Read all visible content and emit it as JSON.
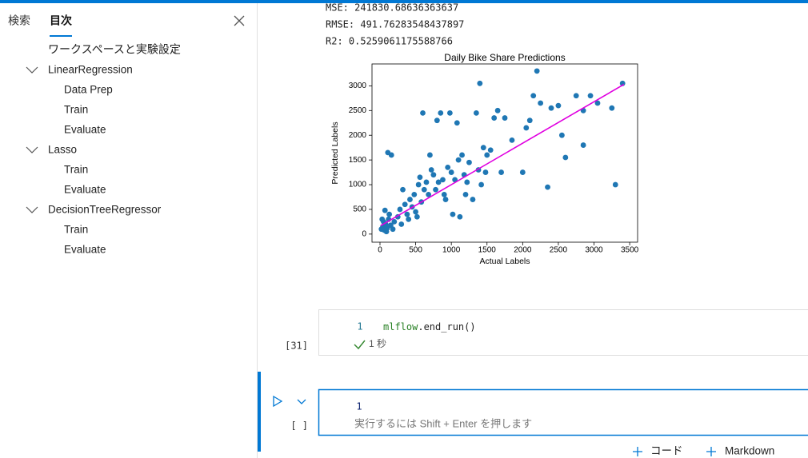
{
  "sidebar": {
    "tabs": [
      "検索",
      "目次"
    ],
    "toc": {
      "root": "ワークスペースと実験設定",
      "groups": [
        {
          "label": "LinearRegression",
          "children": [
            "Data Prep",
            "Train",
            "Evaluate"
          ]
        },
        {
          "label": "Lasso",
          "children": [
            "Train",
            "Evaluate"
          ]
        },
        {
          "label": "DecisionTreeRegressor",
          "children": [
            "Train",
            "Evaluate"
          ]
        }
      ]
    }
  },
  "output": {
    "lines": [
      "MSE: 241830.68636363637",
      "RMSE: 491.76283548437897",
      "R2: 0.5259061175588766"
    ],
    "chart": {
      "type": "scatter",
      "title": "Daily Bike Share Predictions",
      "x_label": "Actual Labels",
      "y_label": "Predicted Labels",
      "xlim": [
        -112,
        3611
      ],
      "ylim": [
        -164,
        3443
      ],
      "xticks": [
        0,
        500,
        1000,
        1500,
        2000,
        2500,
        3000,
        3500
      ],
      "yticks": [
        0,
        500,
        1000,
        1500,
        2000,
        2500,
        3000
      ],
      "point_color": "#1f77b4",
      "line_color": "#e000e0",
      "x": [
        20,
        40,
        60,
        80,
        100,
        120,
        150,
        50,
        90,
        130,
        180,
        200,
        30,
        70,
        110,
        160,
        250,
        280,
        300,
        320,
        350,
        380,
        400,
        420,
        450,
        480,
        500,
        520,
        540,
        560,
        580,
        600,
        620,
        650,
        680,
        700,
        720,
        750,
        780,
        800,
        820,
        850,
        880,
        900,
        920,
        950,
        980,
        1000,
        1020,
        1050,
        1080,
        1100,
        1120,
        1150,
        1180,
        1200,
        1220,
        1250,
        1300,
        1350,
        1380,
        1400,
        1420,
        1450,
        1480,
        1500,
        1550,
        1600,
        1650,
        1700,
        1750,
        1850,
        2000,
        2050,
        2100,
        2150,
        2200,
        2250,
        2350,
        2400,
        2500,
        2550,
        2600,
        2750,
        2850,
        2850,
        2950,
        3050,
        3250,
        3300,
        3400
      ],
      "y": [
        100,
        150,
        80,
        200,
        120,
        300,
        180,
        250,
        50,
        400,
        100,
        250,
        300,
        480,
        1650,
        1600,
        350,
        500,
        200,
        900,
        600,
        400,
        300,
        700,
        550,
        800,
        450,
        350,
        1000,
        1150,
        650,
        2450,
        900,
        1050,
        800,
        1600,
        1300,
        1200,
        900,
        2300,
        1050,
        2450,
        1100,
        800,
        700,
        1350,
        2450,
        1250,
        400,
        1100,
        2250,
        1500,
        350,
        1600,
        1200,
        800,
        1050,
        1450,
        700,
        2450,
        1300,
        3050,
        1000,
        1750,
        1250,
        1600,
        1700,
        2350,
        2500,
        1250,
        2350,
        1900,
        1250,
        2150,
        2300,
        2800,
        3300,
        2650,
        950,
        2550,
        2600,
        2000,
        1550,
        2800,
        2500,
        1800,
        2800,
        2650,
        2550,
        1000,
        3050
      ],
      "line_x": [
        10,
        3420
      ],
      "line_y": [
        170,
        3030
      ]
    }
  },
  "cells": [
    {
      "line_number": "1",
      "code": [
        "mlflow",
        ".end_run()"
      ],
      "exec_count": "[31]",
      "duration": "1 秒"
    },
    {
      "line_number": "1",
      "placeholder": "実行するには Shift + Enter を押します",
      "exec_count": "[ ]"
    }
  ],
  "toolbar": [
    "コード",
    "Markdown"
  ]
}
